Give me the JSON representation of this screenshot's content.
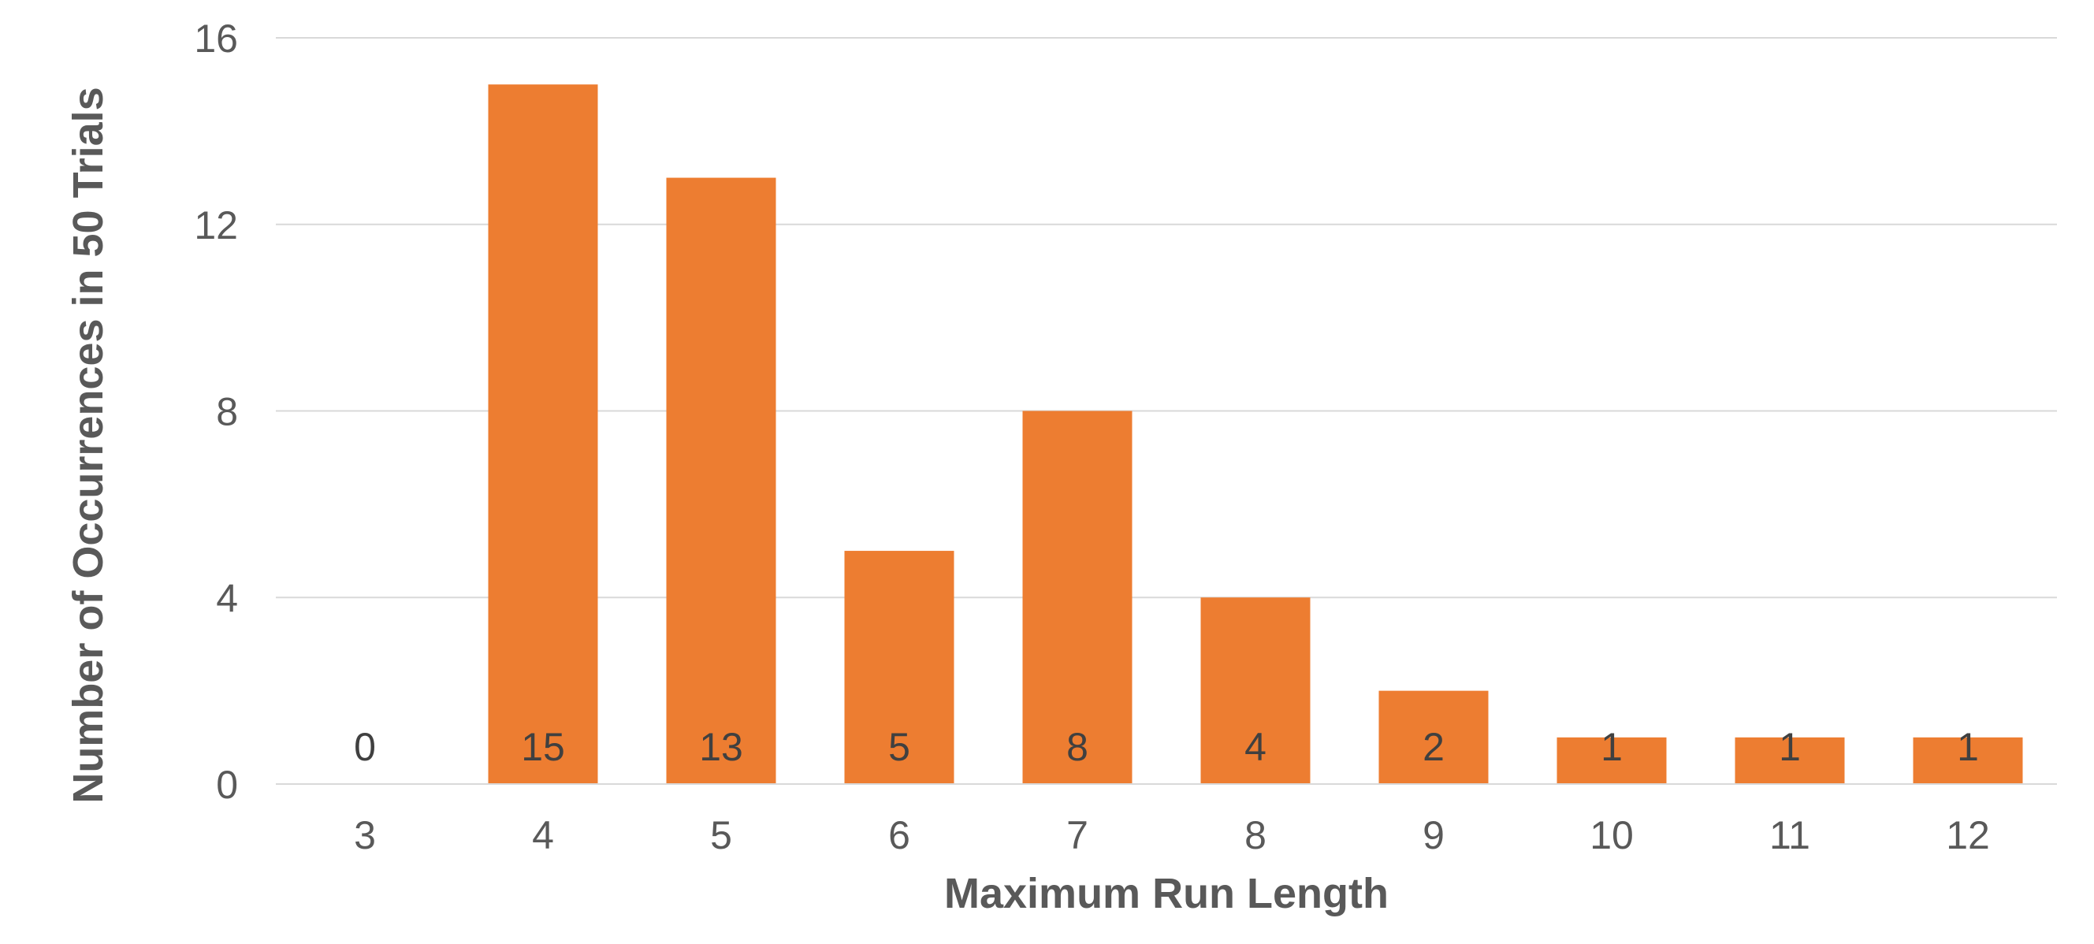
{
  "chart_data": {
    "type": "bar",
    "title": "",
    "xlabel": "Maximum Run Length",
    "ylabel": "Number of Occurrences in 50 Trials",
    "categories": [
      "3",
      "4",
      "5",
      "6",
      "7",
      "8",
      "9",
      "10",
      "11",
      "12"
    ],
    "values": [
      0,
      15,
      13,
      5,
      8,
      4,
      2,
      1,
      1,
      1
    ],
    "data_labels": [
      "0",
      "15",
      "13",
      "5",
      "8",
      "4",
      "2",
      "1",
      "1",
      "1"
    ],
    "ylim": [
      0,
      16
    ],
    "yticks": [
      "0",
      "4",
      "8",
      "12",
      "16"
    ],
    "grid": true,
    "legend": "none",
    "colors": {
      "bar": "#ED7D31",
      "gridline": "#D9D9D9",
      "axis_line": "#D9D9D9",
      "text": "#595959",
      "data_label": "#404040"
    }
  }
}
